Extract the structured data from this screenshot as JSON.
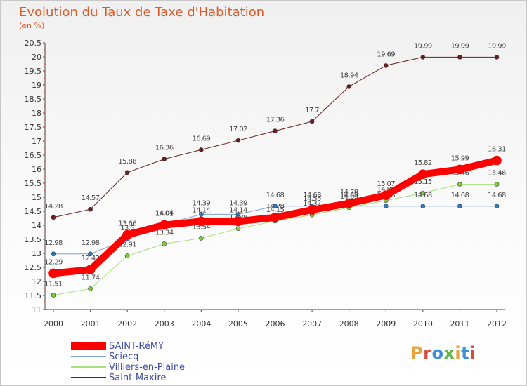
{
  "title": "Evolution du Taux de Taxe d'Habitation",
  "unit_label": "(en %)",
  "logo_text": "Proxiti",
  "logo_colors": [
    "#e8a33a",
    "#d94a3a",
    "#3a8fd9",
    "#67b54a",
    "#e8a33a",
    "#3a8fd9",
    "#d94a3a"
  ],
  "chart_data": {
    "type": "line",
    "title": "Evolution du Taux de Taxe d'Habitation",
    "ylabel": "(en %)",
    "xlabel": "",
    "ylim": [
      11,
      20.5
    ],
    "ystep": 0.5,
    "y_ticks": [
      "11",
      "11.5",
      "12",
      "12.5",
      "13",
      "13.5",
      "14",
      "14.5",
      "15",
      "15.5",
      "16",
      "16.5",
      "17",
      "17.5",
      "18",
      "18.5",
      "19",
      "19.5",
      "20",
      "20.5"
    ],
    "x": [
      "2000",
      "2001",
      "2002",
      "2003",
      "2004",
      "2005",
      "2006",
      "2007",
      "2008",
      "2009",
      "2010",
      "2011",
      "2012"
    ],
    "grid": false,
    "legend_position": "bottom-left",
    "series": [
      {
        "name": "Saint-Maxire",
        "color": "#6b1e1e",
        "marker": "#6b1e1e",
        "width": 1,
        "values": [
          14.28,
          14.57,
          15.88,
          16.36,
          16.69,
          17.02,
          17.36,
          17.7,
          18.94,
          19.69,
          19.99,
          19.99,
          19.99
        ]
      },
      {
        "name": "Villiers-en-Plaine",
        "color": "#a8e07a",
        "marker": "#7fd13b",
        "width": 1,
        "values": [
          11.51,
          11.74,
          12.91,
          13.34,
          13.54,
          13.88,
          14.15,
          14.37,
          14.63,
          14.88,
          15.15,
          15.46,
          15.46
        ]
      },
      {
        "name": "Sciecq",
        "color": "#7aa4d4",
        "marker": "#2a7cc7",
        "width": 1,
        "values": [
          12.98,
          12.98,
          13.5,
          14.04,
          14.39,
          14.39,
          14.68,
          14.68,
          14.68,
          14.68,
          14.68,
          14.68,
          14.68
        ]
      },
      {
        "name": "SAINT-RéMY",
        "color": "#ff0000",
        "marker": "#ff0000",
        "width": 10,
        "values": [
          12.29,
          12.42,
          13.66,
          14.01,
          14.14,
          14.14,
          14.28,
          14.55,
          14.78,
          15.07,
          15.82,
          15.99,
          16.31
        ]
      }
    ],
    "legend": [
      {
        "name": "SAINT-RéMY",
        "color": "#ff0000",
        "width": 10
      },
      {
        "name": "Sciecq",
        "color": "#7aa4d4",
        "width": 2
      },
      {
        "name": "Villiers-en-Plaine",
        "color": "#a8e07a",
        "width": 2
      },
      {
        "name": "Saint-Maxire",
        "color": "#6b1e1e",
        "width": 2
      }
    ]
  }
}
